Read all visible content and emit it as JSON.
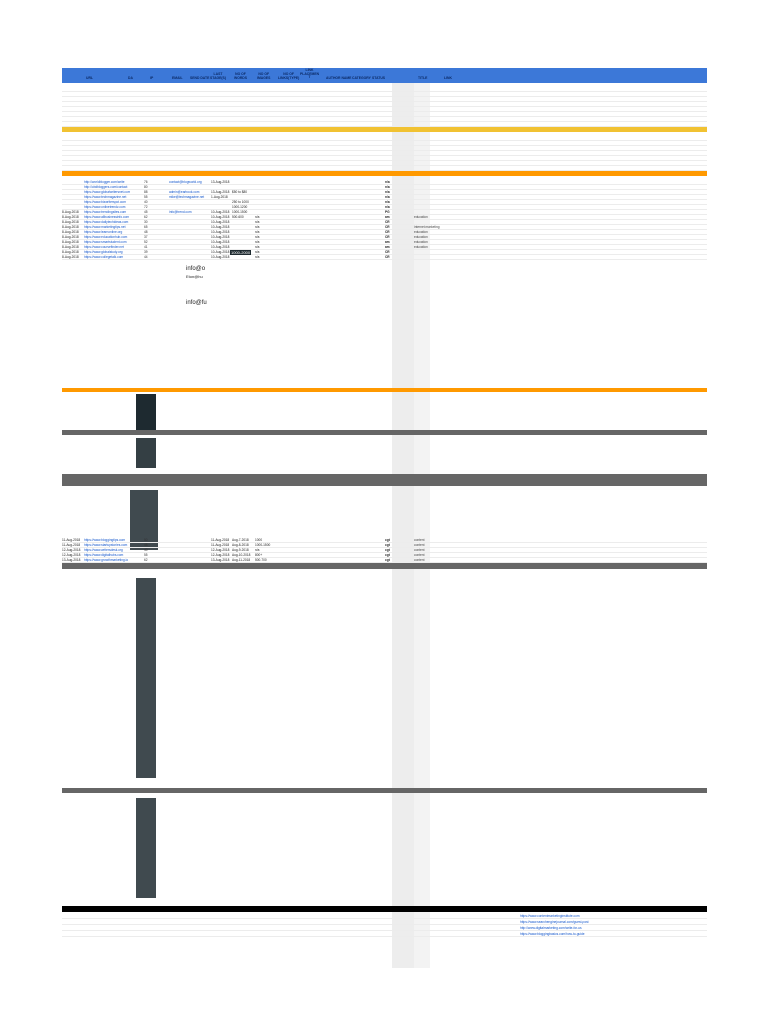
{
  "header": {
    "url": "URL",
    "da": "DA",
    "ip": "IP",
    "email": "EMAIL",
    "send_date": "SEND DATE",
    "last_stage": "LAST\nSTAGE(S)",
    "nofollow_words": "NO OF\nWORDS",
    "nofollow_images": "NO OF\nIMAGES",
    "nofollow_links": "NO OF\nLINKS(TYPE)",
    "link_placement": "LINK\nPLACEMEN\nT",
    "author_name": "AUTHOR NAME",
    "category": "CATEGORY",
    "status": "STATUS",
    "title": "TITLE",
    "link": "LINK"
  },
  "rows": [
    {
      "date": "",
      "url": "http://worldblogger.com/write",
      "ip": "76",
      "email": "contact@blogworld.org",
      "sent": "13-Aug-2018",
      "pub": "",
      "ex": "",
      "col": "n/a",
      "cat": ""
    },
    {
      "date": "",
      "url": "http://cbdbloggers.com/contact",
      "ip": "80",
      "email": "",
      "sent": "",
      "pub": "",
      "ex": "",
      "col": "n/a",
      "cat": ""
    },
    {
      "date": "",
      "url": "https://www.globalwritersnet.com",
      "ip": "88",
      "email": "admin@earbook.com",
      "sent": "13-Aug-2018",
      "pub": "$50 to $80",
      "ex": "",
      "col": "n/a",
      "cat": ""
    },
    {
      "date": "",
      "url": "https://www.techmagazine.net",
      "ip": "55",
      "email": "mike@techmagazine.net",
      "sent": "1-Aug-2018",
      "pub": "",
      "ex": "",
      "col": "n/a",
      "cat": ""
    },
    {
      "date": "",
      "url": "https://www.bizwriterspot.com",
      "ip": "40",
      "email": "",
      "sent": "",
      "pub": "250 to 1000",
      "ex": "",
      "col": "n/a",
      "cat": ""
    },
    {
      "date": "",
      "url": "https://www.onlinetrendz.com",
      "ip": "72",
      "email": "",
      "sent": "",
      "pub": "1000-1200",
      "ex": "",
      "col": "n/a",
      "cat": ""
    },
    {
      "date": "8-Aug-2018",
      "url": "https://www.trendingsites.com",
      "ip": "45",
      "email": "info@trend.com",
      "sent": "10-Aug-2018",
      "pub": "1000-1500",
      "ex": "",
      "col": "PG",
      "cat": ""
    },
    {
      "date": "8-Aug-2018",
      "url": "https://www.allbusinessinfo.com",
      "ip": "62",
      "email": "",
      "sent": "10-Aug-2018",
      "pub": "500-600",
      "ex": "n/a",
      "col": "am",
      "cat": "education"
    },
    {
      "date": "8-Aug-2018",
      "url": "https://www.dailytechideas.com",
      "ip": "30",
      "email": "",
      "sent": "10-Aug-2018",
      "pub": "",
      "ex": "n/a",
      "col": "CR",
      "cat": ""
    },
    {
      "date": "8-Aug-2018",
      "url": "https://www.marketingtips.net",
      "ip": "65",
      "email": "",
      "sent": "10-Aug-2018",
      "pub": "",
      "ex": "n/a",
      "col": "CR",
      "cat": "internet marketing"
    },
    {
      "date": "8-Aug-2018",
      "url": "https://www.learnonline.org",
      "ip": "48",
      "email": "",
      "sent": "10-Aug-2018",
      "pub": "",
      "ex": "n/a",
      "col": "CR",
      "cat": "education"
    },
    {
      "date": "8-Aug-2018",
      "url": "https://www.educationhub.com",
      "ip": "37",
      "email": "",
      "sent": "10-Aug-2018",
      "pub": "",
      "ex": "n/a",
      "col": "CR",
      "cat": "education"
    },
    {
      "date": "8-Aug-2018",
      "url": "https://www.smartstudent.com",
      "ip": "52",
      "email": "",
      "sent": "10-Aug-2018",
      "pub": "",
      "ex": "n/a",
      "col": "am",
      "cat": "education"
    },
    {
      "date": "8-Aug-2018",
      "url": "https://www.coursefinder.net",
      "ip": "41",
      "email": "",
      "sent": "10-Aug-2018",
      "pub": "",
      "ex": "n/a",
      "col": "am",
      "cat": "education"
    },
    {
      "date": "8-Aug-2018",
      "url": "https://www.globalstudy.org",
      "ip": "39",
      "email": "",
      "sent": "10-Aug-2018",
      "pub": "",
      "ex": "n/a",
      "col": "CR",
      "cat": ""
    },
    {
      "date": "8-Aug-2018",
      "url": "https://www.collegetalk.com",
      "ip": "44",
      "email": "",
      "sent": "10-Aug-2018",
      "pub": "",
      "ex": "n/a",
      "col": "CR",
      "cat": ""
    }
  ],
  "big_cells": [
    "info@o",
    "Eton@hu",
    "info@fu",
    "bizfull.com",
    "upworkall",
    "info@fu"
  ],
  "cell_tag": "1000-2000",
  "lower_rows": [
    {
      "date": "11-Aug-2018",
      "url": "https://www.bloggingtips.com",
      "ip": "50",
      "email": "",
      "sent": "11-Aug-2018",
      "pub": "Aug-7-2018",
      "ex": "1000",
      "col": "cgt",
      "cat": "content"
    },
    {
      "date": "11-Aug-2018",
      "url": "https://www.startupstories.com",
      "ip": "48",
      "email": "",
      "sent": "11-Aug-2018",
      "pub": "Aug-8-2018",
      "ex": "1000-1500",
      "col": "cgt",
      "cat": "content"
    },
    {
      "date": "12-Aug-2018",
      "url": "https://www.writersdesk.org",
      "ip": "40",
      "email": "",
      "sent": "12-Aug-2018",
      "pub": "Aug-9-2018",
      "ex": "n/a",
      "col": "cgt",
      "cat": "content"
    },
    {
      "date": "12-Aug-2018",
      "url": "https://www.digitalhubs.com",
      "ip": "55",
      "email": "",
      "sent": "12-Aug-2018",
      "pub": "Aug-10-2018",
      "ex": "800+",
      "col": "cgt",
      "cat": "content"
    },
    {
      "date": "13-Aug-2018",
      "url": "https://www.growthmarketing.io",
      "ip": "62",
      "email": "",
      "sent": "13-Aug-2018",
      "pub": "Aug-11-2018",
      "ex": "500-700",
      "col": "cgt",
      "cat": "content"
    }
  ],
  "tail_links": [
    "https://www.contentmarketinginstitute.com",
    "https://www.searchenginejournal.com/guest-post",
    "http://www.digitalmarketing.com/write-for-us",
    "https://www.bloggingbasics.com/how-to-guide"
  ]
}
